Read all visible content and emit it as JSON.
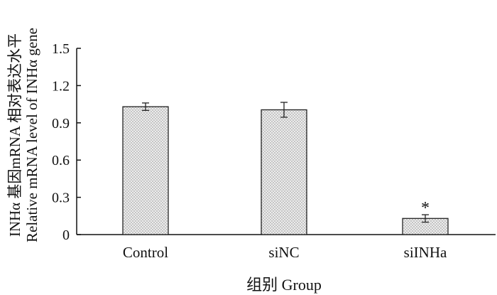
{
  "chart_data": {
    "type": "bar",
    "categories": [
      "Control",
      "siNC",
      "siINHa"
    ],
    "values": [
      1.03,
      1.005,
      0.13
    ],
    "errors": [
      0.03,
      0.06,
      0.03
    ],
    "annotations": [
      "",
      "",
      "*"
    ],
    "ylim": [
      0,
      1.5
    ],
    "yticks": [
      "0",
      "0.3",
      "0.6",
      "0.9",
      "1.2",
      "1.5"
    ],
    "xlabel": "组别 Group",
    "ylabel_line1": "INHα 基因mRNA 相对表达水平",
    "ylabel_line2": "Relative mRNA level of INHα gene",
    "bar_fill": "#e4e4e4",
    "bar_stroke": "#222222",
    "grid": false
  }
}
